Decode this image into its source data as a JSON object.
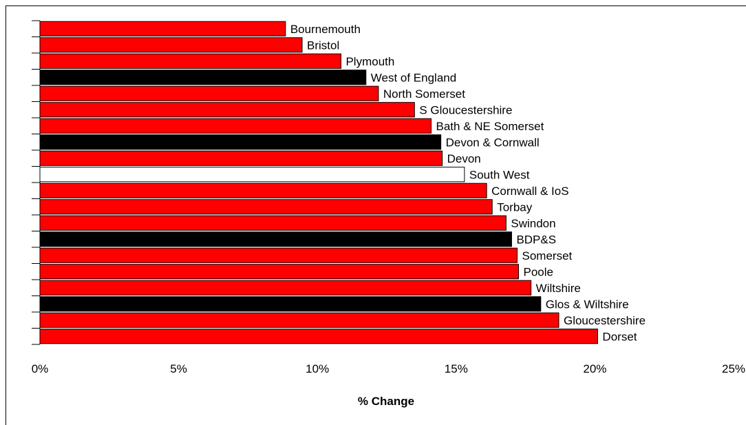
{
  "chart_data": {
    "type": "bar",
    "orientation": "horizontal",
    "xlabel": "% Change",
    "xlim": [
      0,
      25
    ],
    "x_ticks": [
      "0%",
      "5%",
      "10%",
      "15%",
      "20%",
      "25%"
    ],
    "grid": false,
    "legend": "none",
    "colors": {
      "local_authority": "#ff0000",
      "sub_region": "#000000",
      "region": "#ffffff",
      "outline": "#000000"
    },
    "bars": [
      {
        "label": "Bournemouth",
        "value": 8.85,
        "group": "local_authority"
      },
      {
        "label": "Bristol",
        "value": 9.45,
        "group": "local_authority"
      },
      {
        "label": "Plymouth",
        "value": 10.85,
        "group": "local_authority"
      },
      {
        "label": "West of England",
        "value": 11.75,
        "group": "sub_region"
      },
      {
        "label": "North Somerset",
        "value": 12.2,
        "group": "local_authority"
      },
      {
        "label": "S Gloucestershire",
        "value": 13.5,
        "group": "local_authority"
      },
      {
        "label": "Bath & NE Somerset",
        "value": 14.1,
        "group": "local_authority"
      },
      {
        "label": "Devon & Cornwall",
        "value": 14.45,
        "group": "sub_region"
      },
      {
        "label": "Devon",
        "value": 14.5,
        "group": "local_authority"
      },
      {
        "label": "South West",
        "value": 15.3,
        "group": "region"
      },
      {
        "label": "Cornwall & IoS",
        "value": 16.1,
        "group": "local_authority"
      },
      {
        "label": "Torbay",
        "value": 16.3,
        "group": "local_authority"
      },
      {
        "label": "Swindon",
        "value": 16.8,
        "group": "local_authority"
      },
      {
        "label": "BDP&S",
        "value": 17.0,
        "group": "sub_region"
      },
      {
        "label": "Somerset",
        "value": 17.2,
        "group": "local_authority"
      },
      {
        "label": "Poole",
        "value": 17.25,
        "group": "local_authority"
      },
      {
        "label": "Wiltshire",
        "value": 17.7,
        "group": "local_authority"
      },
      {
        "label": "Glos & Wiltshire",
        "value": 18.05,
        "group": "sub_region"
      },
      {
        "label": "Gloucestershire",
        "value": 18.7,
        "group": "local_authority"
      },
      {
        "label": "Dorset",
        "value": 20.1,
        "group": "local_authority"
      }
    ]
  }
}
